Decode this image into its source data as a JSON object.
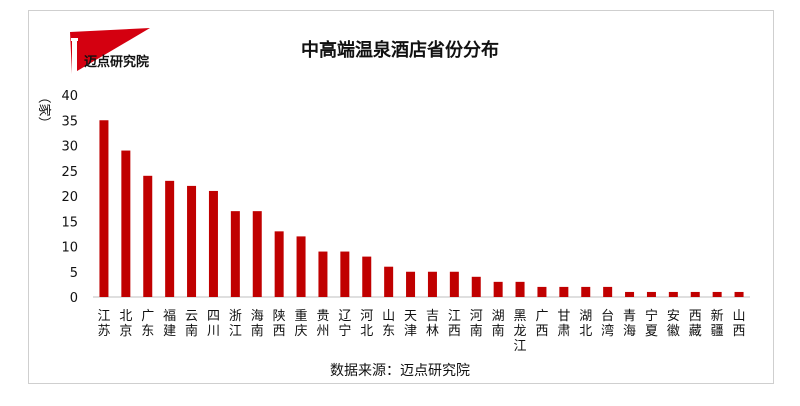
{
  "logo": {
    "text": "迈点研究院"
  },
  "chart_data": {
    "type": "bar",
    "title": "中高端温泉酒店省份分布",
    "ylabel": "（家）",
    "xlabel": "",
    "ylim": [
      0,
      40
    ],
    "yticks": [
      0,
      5,
      10,
      15,
      20,
      25,
      30,
      35,
      40
    ],
    "grid": false,
    "color": "#c00000",
    "categories": [
      "江苏",
      "北京",
      "广东",
      "福建",
      "云南",
      "四川",
      "浙江",
      "海南",
      "陕西",
      "重庆",
      "贵州",
      "辽宁",
      "河北",
      "山东",
      "天津",
      "吉林",
      "江西",
      "河南",
      "湖南",
      "黑龙江",
      "广西",
      "甘肃",
      "湖北",
      "台湾",
      "青海",
      "宁夏",
      "安徽",
      "西藏",
      "新疆",
      "山西"
    ],
    "values": [
      35,
      29,
      24,
      23,
      22,
      21,
      17,
      17,
      13,
      12,
      9,
      9,
      8,
      6,
      5,
      5,
      5,
      4,
      3,
      3,
      2,
      2,
      2,
      2,
      1,
      1,
      1,
      1,
      1,
      1
    ],
    "source": "数据来源：迈点研究院"
  }
}
